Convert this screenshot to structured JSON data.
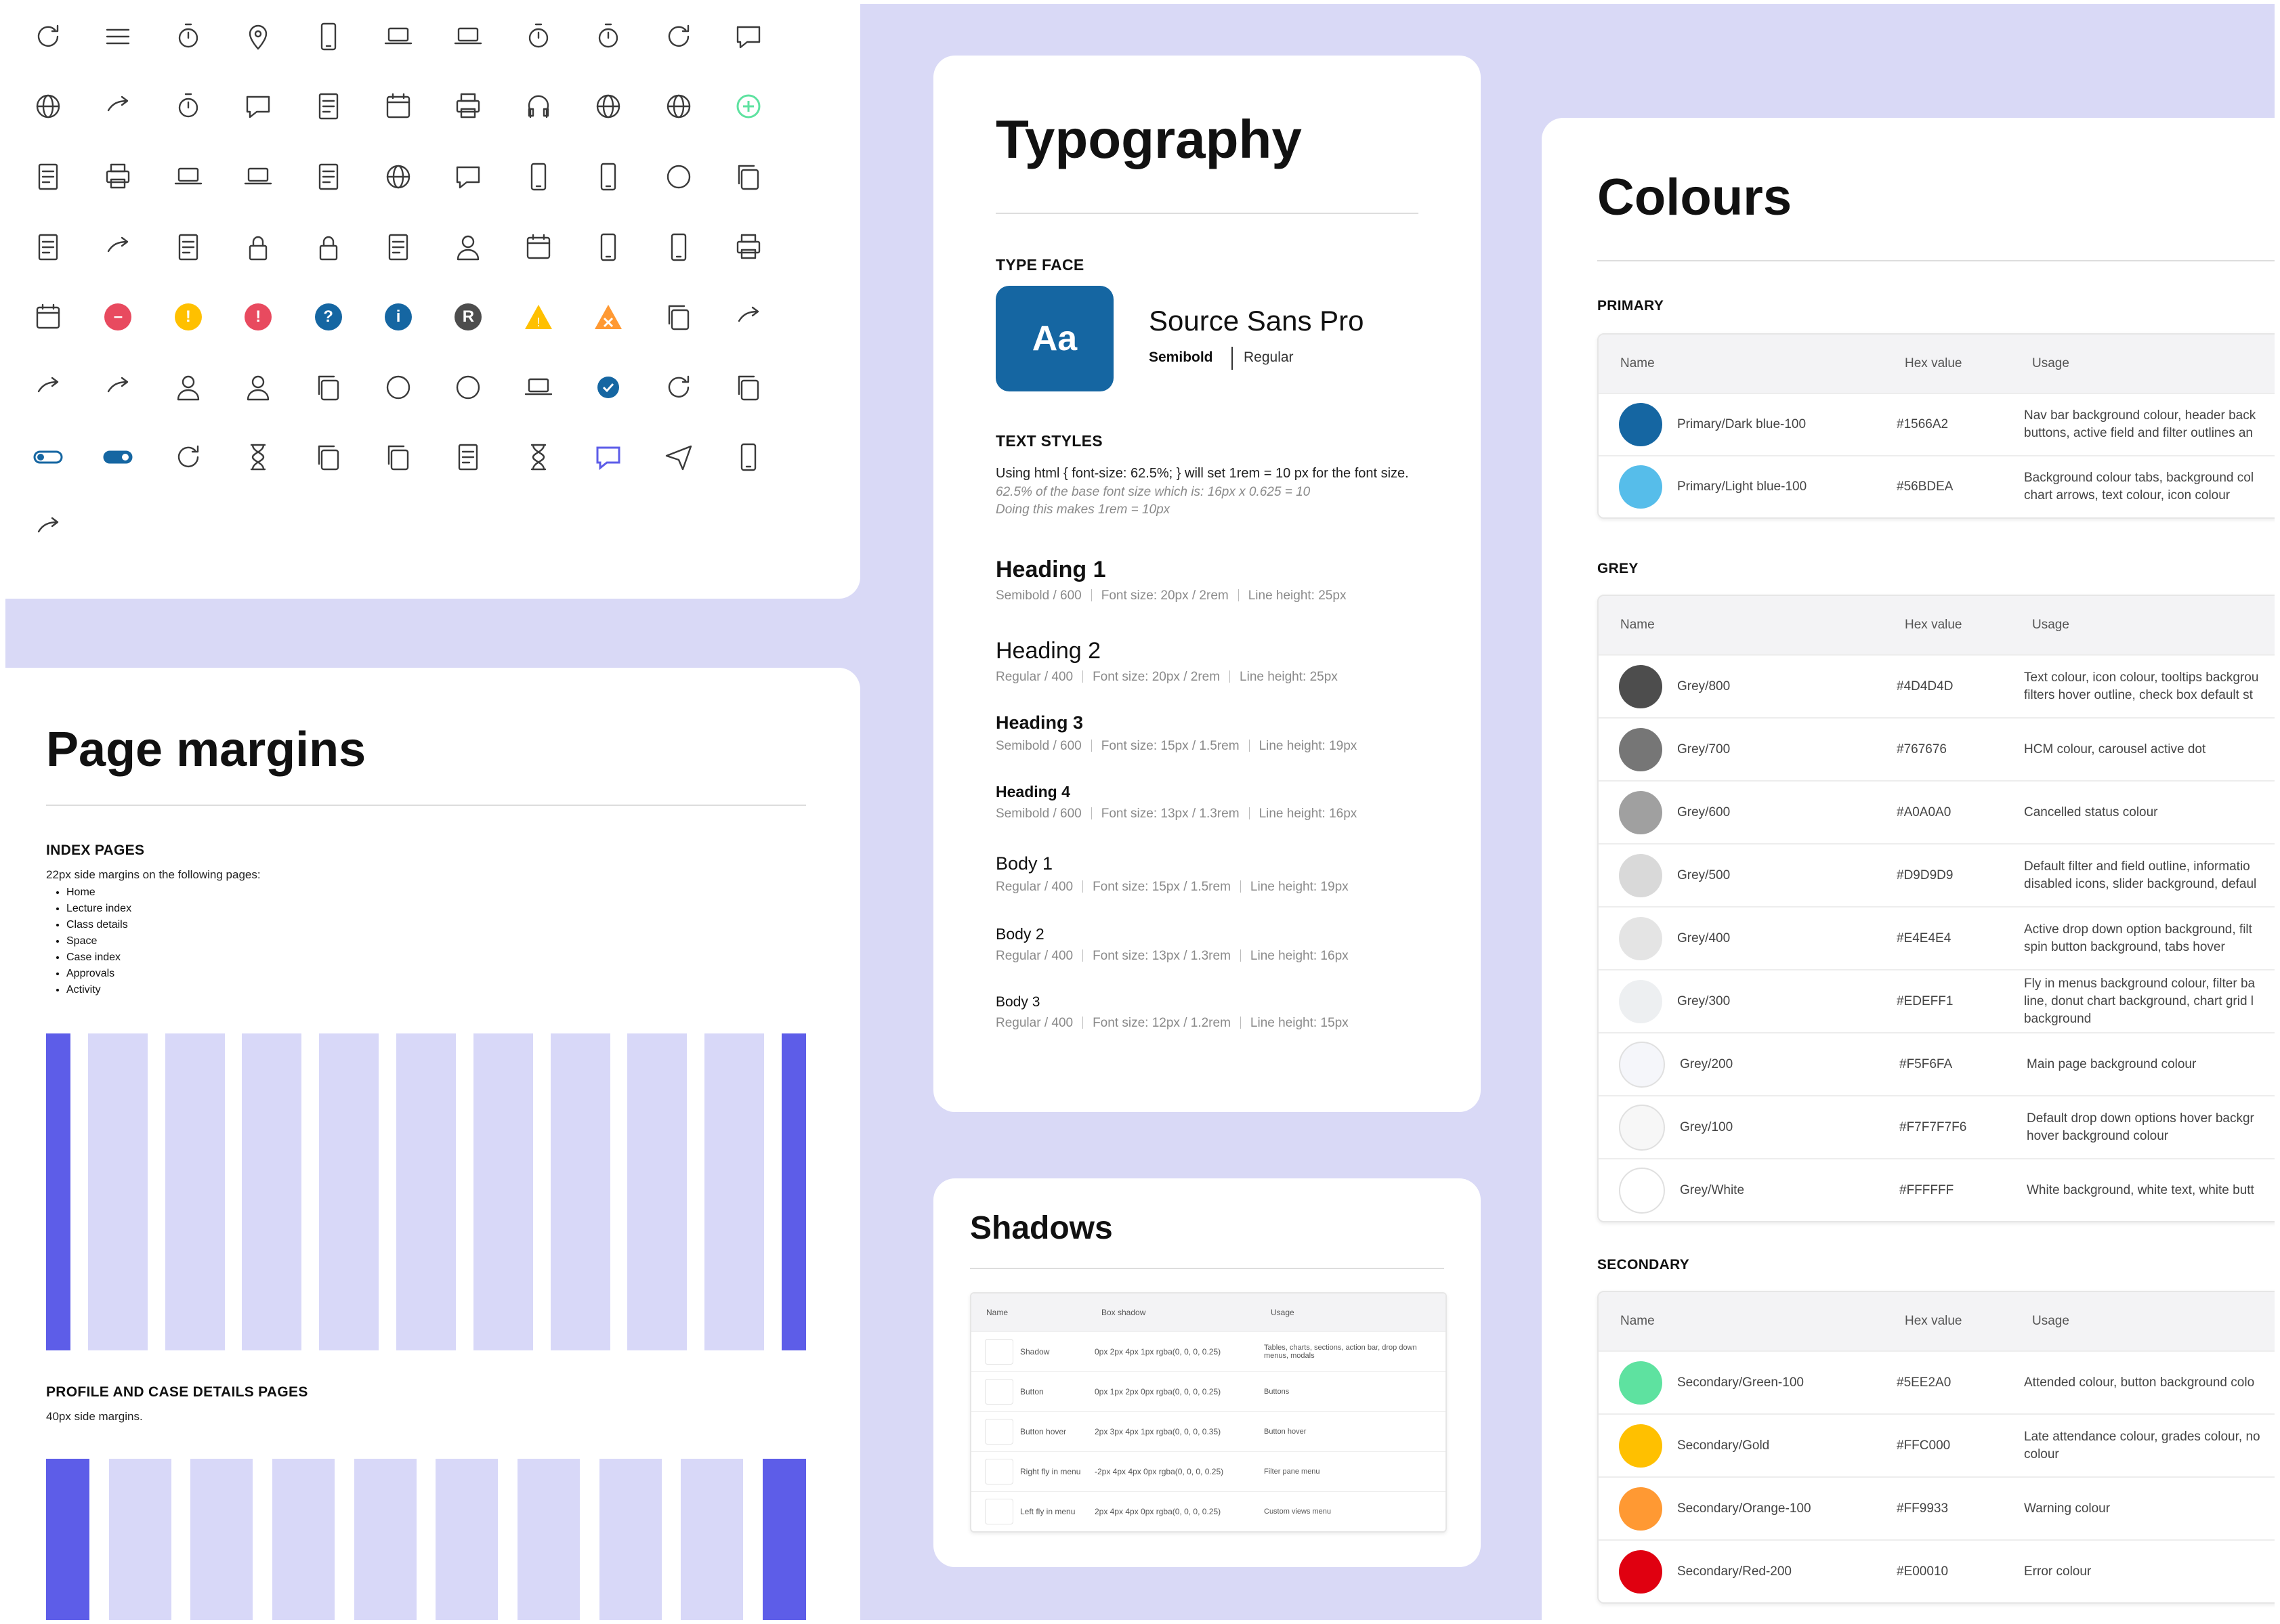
{
  "icons": {
    "grid": [
      [
        "check-icon",
        "graduation-cap-icon",
        "hamburger-menu-icon",
        "clipboard-clock-icon",
        "map-pin-icon",
        "mobile-phone-icon",
        "laptop-icon",
        "presenter-icon",
        "stopwatch-icon",
        "wristwatch-icon",
        "running-person-icon",
        "chat-help-icon"
      ],
      [
        "sign-in-icon",
        "bluetooth-icon",
        "share-arrow-icon",
        "document-clock-icon",
        "chat-bubbles-icon",
        "document-check-icon",
        "calendar-check-icon",
        "printer-icon",
        "head-gears-icon",
        "broadcast-icon",
        "broadcast-off-icon",
        "add-circle-icon"
      ],
      [
        "document-check-green-icon",
        "document-error-icon",
        "wallet-icon",
        "video-camera-icon",
        "video-player-icon",
        "briefcase-sync-icon",
        "globe-icon",
        "comment-icon",
        "headphones-icon",
        "tablet-lock-icon",
        "check-circle-icon",
        "edit-square-icon"
      ],
      [
        "add-circle-outline-icon",
        "clipboard-add-icon",
        "upload-circle-icon",
        "certificate-icon",
        "padlock-icon",
        "bin-icon",
        "clipboard-plus-icon",
        "user-icon",
        "calendar-icon",
        "phone-call-icon",
        "phone-mail-icon",
        "stack-icon"
      ],
      [
        "drag-handle-icon",
        "calendar-edit-icon",
        "minus-circle-icon",
        "warning-circle-icon",
        "alert-circle-icon",
        "question-circle-icon",
        "info-circle-icon",
        "registered-icon",
        "warning-triangle-icon",
        "error-triangle-icon",
        "edit-icon",
        "sort-arrows-icon"
      ],
      [
        "bar-icon",
        "branch-icon",
        "branch-edit-icon",
        "users-check-icon",
        "users-remove-icon",
        "visibility-off-icon",
        "help-outline-icon",
        "mail-warning-icon",
        "image-settings-icon",
        "badge-icon",
        "refresh-icon",
        "copy-icon"
      ],
      [
        "toggle-icon",
        "toggle-off-icon",
        "toggle-on-icon",
        "settings-icon",
        "hourglass-icon",
        "thumb-up-icon",
        "thumb-down-icon",
        "document-edit-icon",
        "hourglass-2-icon",
        "bot-icon",
        "send-icon",
        "microphone-icon"
      ],
      [
        "square-icon",
        "undo-icon"
      ]
    ],
    "accent_green": "#5EE2A0",
    "accent_red": "#E84A5F",
    "accent_yellow": "#FFC000",
    "accent_blue": "#1566A2",
    "accent_dark": "#4D4D4D"
  },
  "margins": {
    "title": "Page margins",
    "index_heading": "INDEX PAGES",
    "index_desc": "22px side margins on the following pages:",
    "index_list": [
      "Home",
      "Lecture index",
      "Class details",
      "Space",
      "Case index",
      "Approvals",
      "Activity"
    ],
    "profile_heading": "PROFILE AND CASE DETAILS PAGES",
    "profile_desc": "40px side margins.",
    "edge_color": "#5D5DE8",
    "column_color": "#D8D8F8"
  },
  "typography": {
    "title": "Typography",
    "typeface_heading": "TYPE FACE",
    "aa": "Aa",
    "font_name": "Source Sans Pro",
    "weight_1": "Semibold",
    "weight_2": "Regular",
    "text_styles_heading": "TEXT STYLES",
    "note_1": "Using html { font-size: 62.5%; } will set 1rem = 10 px for the font size.",
    "note_2": "62.5% of the base font size which is: 16px x 0.625 = 10",
    "note_3": "Doing this makes 1rem = 10px",
    "styles": [
      {
        "name": "Heading 1",
        "weight": "Semibold / 600",
        "size": "Font size: 20px / 2rem",
        "lh": "Line height: 25px"
      },
      {
        "name": "Heading 2",
        "weight": "Regular / 400",
        "size": "Font size: 20px / 2rem",
        "lh": "Line height: 25px"
      },
      {
        "name": "Heading 3",
        "weight": "Semibold / 600",
        "size": "Font size: 15px / 1.5rem",
        "lh": "Line height: 19px"
      },
      {
        "name": "Heading 4",
        "weight": "Semibold / 600",
        "size": "Font size: 13px / 1.3rem",
        "lh": "Line height: 16px"
      },
      {
        "name": "Body 1",
        "weight": "Regular / 400",
        "size": "Font size: 15px / 1.5rem",
        "lh": "Line height: 19px"
      },
      {
        "name": "Body 2",
        "weight": "Regular / 400",
        "size": "Font size: 13px / 1.3rem",
        "lh": "Line height: 16px"
      },
      {
        "name": "Body 3",
        "weight": "Regular / 400",
        "size": "Font size: 12px / 1.2rem",
        "lh": "Line height: 15px"
      }
    ]
  },
  "shadows": {
    "title": "Shadows",
    "headers": [
      "Name",
      "Box shadow",
      "Usage"
    ],
    "rows": [
      {
        "name": "Shadow",
        "value": "0px 2px 4px 1px rgba(0, 0, 0, 0.25)",
        "usage": "Tables, charts, sections, action bar, drop down menus, modals"
      },
      {
        "name": "Button",
        "value": "0px 1px 2px 0px rgba(0, 0, 0, 0.25)",
        "usage": "Buttons"
      },
      {
        "name": "Button hover",
        "value": "2px 3px 4px 1px rgba(0, 0, 0, 0.35)",
        "usage": "Button hover"
      },
      {
        "name": "Right fly in menu",
        "value": "-2px 4px 4px 0px rgba(0, 0, 0, 0.25)",
        "usage": "Filter pane menu"
      },
      {
        "name": "Left fly in menu",
        "value": "2px 4px 4px 0px rgba(0, 0, 0, 0.25)",
        "usage": "Custom views menu"
      }
    ]
  },
  "colours": {
    "title": "Colours",
    "headers": [
      "Name",
      "Hex value",
      "Usage"
    ],
    "primary_heading": "PRIMARY",
    "primary": [
      {
        "name": "Primary/Dark blue-100",
        "hex": "#1566A2",
        "usage": "Nav bar background colour, header back buttons, active field and filter outlines an"
      },
      {
        "name": "Primary/Light blue-100",
        "hex": "#56BDEA",
        "usage": "Background colour tabs, background col chart arrows, text colour, icon colour"
      }
    ],
    "grey_heading": "GREY",
    "grey": [
      {
        "name": "Grey/800",
        "hex": "#4D4D4D",
        "usage": "Text colour, icon colour, tooltips backgrou filters hover outline, check box default st"
      },
      {
        "name": "Grey/700",
        "hex": "#767676",
        "usage": "HCM colour, carousel active dot"
      },
      {
        "name": "Grey/600",
        "hex": "#A0A0A0",
        "usage": "Cancelled status colour"
      },
      {
        "name": "Grey/500",
        "hex": "#D9D9D9",
        "usage": "Default filter and field outline, informatio disabled icons, slider background, defaul"
      },
      {
        "name": "Grey/400",
        "hex": "#E4E4E4",
        "usage": "Active drop down option background, filt spin button background, tabs hover"
      },
      {
        "name": "Grey/300",
        "hex": "#EDEFF1",
        "usage": "Fly in menus background colour, filter ba line, donut chart background, chart grid l background"
      },
      {
        "name": "Grey/200",
        "hex": "#F5F6FA",
        "usage": "Main page background colour"
      },
      {
        "name": "Grey/100",
        "hex": "#F7F7F7F6",
        "usage": "Default drop down options hover backgr hover background colour"
      },
      {
        "name": "Grey/White",
        "hex": "#FFFFFF",
        "usage": "White background, white text, white butt"
      }
    ],
    "secondary_heading": "SECONDARY",
    "secondary": [
      {
        "name": "Secondary/Green-100",
        "hex": "#5EE2A0",
        "usage": "Attended colour, button background colo"
      },
      {
        "name": "Secondary/Gold",
        "hex": "#FFC000",
        "usage": "Late attendance colour, grades colour, no colour"
      },
      {
        "name": "Secondary/Orange-100",
        "hex": "#FF9933",
        "usage": "Warning colour"
      },
      {
        "name": "Secondary/Red-200",
        "hex": "#E00010",
        "usage": "Error colour"
      }
    ]
  }
}
